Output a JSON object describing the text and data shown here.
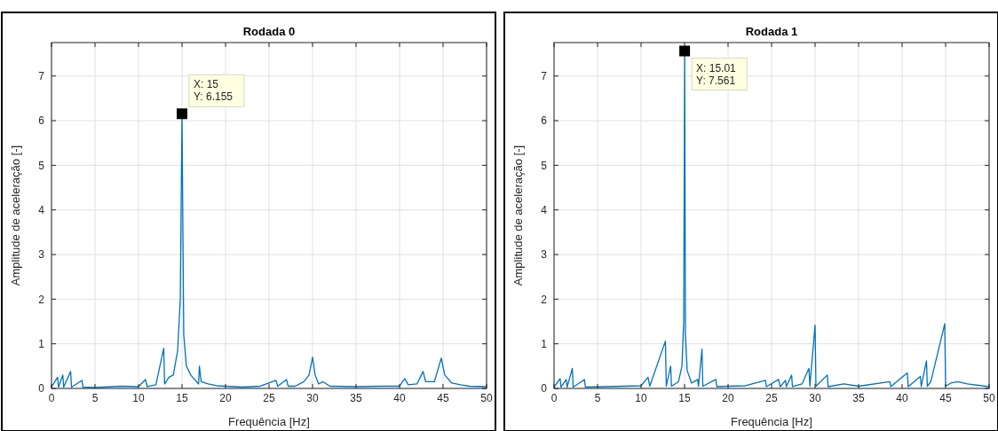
{
  "chart_data": [
    {
      "type": "line",
      "title": "Rodada 0",
      "xlabel": "Frequência [Hz]",
      "ylabel": "Amplitude de aceleração [-]",
      "xlim": [
        0,
        50
      ],
      "ylim": [
        0,
        7.75
      ],
      "xticks": [
        0,
        5,
        10,
        15,
        20,
        25,
        30,
        35,
        40,
        45,
        50
      ],
      "yticks": [
        0,
        1,
        2,
        3,
        4,
        5,
        6,
        7
      ],
      "grid": true,
      "annotations": [
        {
          "text": "X: 15\nY: 6.155",
          "x": 15,
          "y": 6.155
        }
      ],
      "series": [
        {
          "color": "#0072bd",
          "x": [
            0,
            0.7,
            0.8,
            1.3,
            1.4,
            2.2,
            2.3,
            3.5,
            3.6,
            5,
            8,
            10,
            10.8,
            11,
            12,
            12.9,
            13,
            13.5,
            14,
            14.5,
            14.8,
            15,
            15.1,
            15.2,
            15.5,
            16,
            16.9,
            17,
            17.2,
            18,
            19,
            20,
            22,
            24,
            25.8,
            26,
            27,
            27.2,
            28,
            29,
            29.6,
            30,
            30.3,
            30.7,
            31.2,
            32,
            35,
            38,
            40,
            40.6,
            41,
            42,
            42.7,
            43,
            44,
            44.8,
            45.2,
            46,
            47,
            48,
            50
          ],
          "values": [
            0.03,
            0.25,
            0.03,
            0.3,
            0.03,
            0.38,
            0.03,
            0.18,
            0.03,
            0.02,
            0.05,
            0.04,
            0.2,
            0.04,
            0.08,
            0.9,
            0.1,
            0.25,
            0.3,
            0.85,
            2,
            6.155,
            3.5,
            1.2,
            0.5,
            0.3,
            0.1,
            0.5,
            0.15,
            0.1,
            0.06,
            0.05,
            0.03,
            0.05,
            0.18,
            0.05,
            0.2,
            0.05,
            0.05,
            0.15,
            0.3,
            0.7,
            0.3,
            0.1,
            0.15,
            0.05,
            0.04,
            0.05,
            0.05,
            0.22,
            0.08,
            0.1,
            0.38,
            0.15,
            0.15,
            0.68,
            0.3,
            0.12,
            0.08,
            0.05,
            0.04
          ]
        }
      ]
    },
    {
      "type": "line",
      "title": "Rodada 1",
      "xlabel": "Frequência [Hz]",
      "ylabel": "Amplitude de aceleração [-]",
      "xlim": [
        0,
        50
      ],
      "ylim": [
        0,
        7.75
      ],
      "xticks": [
        0,
        5,
        10,
        15,
        20,
        25,
        30,
        35,
        40,
        45,
        50
      ],
      "yticks": [
        0,
        1,
        2,
        3,
        4,
        5,
        6,
        7
      ],
      "grid": true,
      "annotations": [
        {
          "text": "X: 15.01\nY: 7.561",
          "x": 15.01,
          "y": 7.561
        }
      ],
      "series": [
        {
          "color": "#0072bd",
          "x": [
            0,
            0.7,
            0.8,
            1.4,
            1.5,
            2.1,
            2.2,
            3.5,
            3.6,
            6,
            8,
            10,
            10.8,
            11,
            12.8,
            12.9,
            13.4,
            13.5,
            14.3,
            14.7,
            14.9,
            15.01,
            15.1,
            15.3,
            15.8,
            16.5,
            16.6,
            17,
            17.1,
            18.6,
            18.7,
            20,
            22,
            24.3,
            24.4,
            25.8,
            26,
            26.6,
            26.7,
            27.3,
            27.4,
            28.5,
            29.3,
            29.4,
            30,
            30.1,
            31.4,
            31.5,
            33.3,
            35,
            38.6,
            38.7,
            40.6,
            40.7,
            42.1,
            42.2,
            42.8,
            42.9,
            43.3,
            44.9,
            45,
            45.6,
            46.4,
            47.5,
            50
          ],
          "values": [
            0.03,
            0.22,
            0.03,
            0.2,
            0.03,
            0.45,
            0.03,
            0.2,
            0.03,
            0.04,
            0.05,
            0.06,
            0.25,
            0.05,
            1.06,
            0.05,
            0.5,
            0.05,
            0.15,
            0.5,
            1.5,
            7.561,
            1.2,
            0.4,
            0.12,
            0.2,
            0.05,
            0.88,
            0.05,
            0.2,
            0.04,
            0.05,
            0.06,
            0.18,
            0.04,
            0.2,
            0.04,
            0.18,
            0.04,
            0.3,
            0.04,
            0.1,
            0.45,
            0.05,
            1.42,
            0.05,
            0.3,
            0.04,
            0.1,
            0.05,
            0.15,
            0.04,
            0.35,
            0.04,
            0.27,
            0.04,
            0.62,
            0.05,
            0.15,
            1.45,
            0.05,
            0.12,
            0.15,
            0.1,
            0.04
          ]
        }
      ]
    }
  ]
}
